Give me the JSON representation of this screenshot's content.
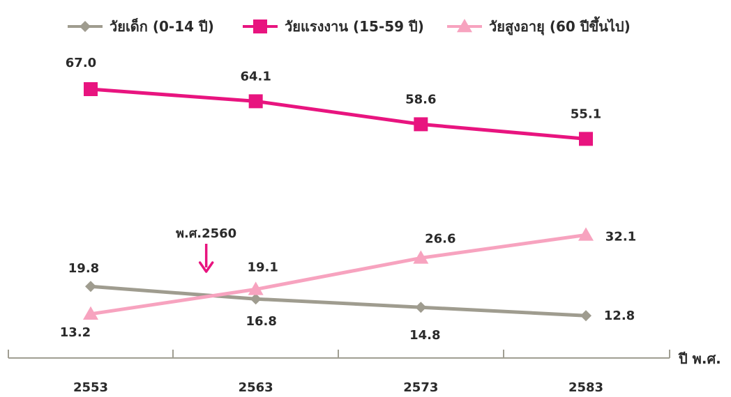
{
  "chart_data": {
    "type": "line",
    "x": [
      2553,
      2563,
      2573,
      2583
    ],
    "categories": [
      "2553",
      "2563",
      "2573",
      "2583"
    ],
    "xlabel": "ปี พ.ศ.",
    "ylabel": "",
    "series": [
      {
        "name": "วัยเด็ก (0-14 ปี)",
        "values": [
          19.8,
          16.8,
          14.8,
          12.8
        ],
        "labels": [
          "19.8",
          "16.8",
          "14.8",
          "12.8"
        ],
        "color": "#9f9c8f",
        "marker": "diamond"
      },
      {
        "name": "วัยแรงงาน (15-59 ปี)",
        "values": [
          67.0,
          64.1,
          58.6,
          55.1
        ],
        "labels": [
          "67.0",
          "64.1",
          "58.6",
          "55.1"
        ],
        "color": "#e8147f",
        "marker": "square"
      },
      {
        "name": "วัยสูงอายุ (60 ปีขึ้นไป)",
        "values": [
          13.2,
          19.1,
          26.6,
          32.1
        ],
        "labels": [
          "13.2",
          "19.1",
          "26.6",
          "32.1"
        ],
        "color": "#f7a3bf",
        "marker": "triangle"
      }
    ],
    "annotations": [
      {
        "text": "พ.ศ.2560",
        "x": 2560,
        "color": "#e8147f",
        "arrow": "down"
      }
    ],
    "legend_position": "top",
    "grid": false,
    "axis_color": "#a09e92"
  }
}
